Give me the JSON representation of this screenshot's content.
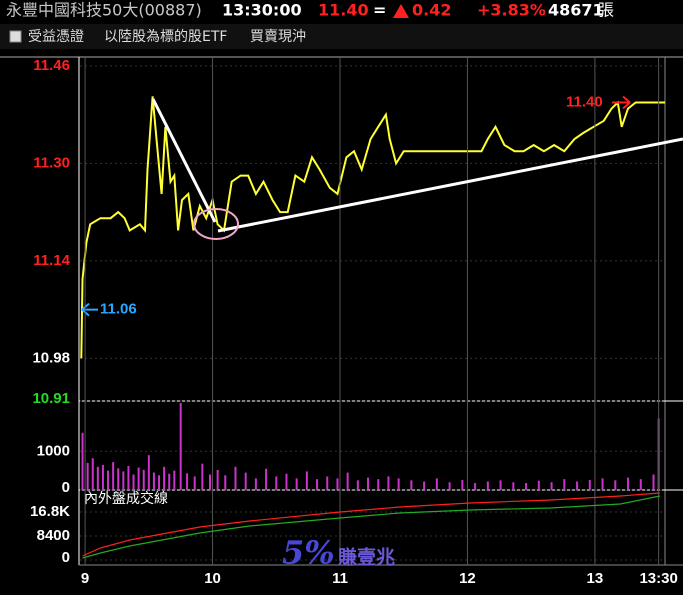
{
  "header": {
    "name": "永豐中國科技50大(00887)",
    "time": "13:30:00",
    "price": "11.40",
    "flag": "=",
    "change": "0.42",
    "change_pct": "+3.83%",
    "volume": "48671",
    "unit": "張"
  },
  "subheader": [
    "受益憑證",
    "以陸股為標的股ETF",
    "買賣現沖"
  ],
  "watermark": {
    "big": "5%",
    "small": "賺壹兆"
  },
  "chart_data": [
    {
      "type": "line",
      "xlim": [
        8.96,
        13.55
      ],
      "ylim": [
        10.91,
        11.473
      ],
      "yticks": [
        11.46,
        {
          "value": 11.3,
          "label": "11.30"
        },
        11.14,
        10.98,
        10.91
      ],
      "ytick_colors": [
        "#ff2020",
        "#ff2020",
        "#ff2020",
        "#ffffff",
        "#22dd22"
      ],
      "x": [
        8.97,
        8.98,
        9.01,
        9.04,
        9.12,
        9.2,
        9.26,
        9.31,
        9.35,
        9.43,
        9.47,
        9.49,
        9.53,
        9.56,
        9.6,
        9.63,
        9.67,
        9.7,
        9.73,
        9.76,
        9.81,
        9.85,
        9.9,
        9.95,
        10.0,
        10.04,
        10.09,
        10.15,
        10.22,
        10.28,
        10.34,
        10.4,
        10.47,
        10.53,
        10.59,
        10.65,
        10.72,
        10.78,
        10.84,
        10.92,
        10.98,
        11.05,
        11.11,
        11.17,
        11.24,
        11.3,
        11.36,
        11.39,
        11.44,
        11.5,
        11.58,
        11.66,
        11.74,
        11.82,
        11.89,
        11.97,
        12.05,
        12.11,
        12.16,
        12.22,
        12.29,
        12.37,
        12.44,
        12.52,
        12.6,
        12.68,
        12.76,
        12.84,
        12.91,
        12.99,
        13.07,
        13.13,
        13.18,
        13.21,
        13.26,
        13.32,
        13.39,
        13.43,
        13.55
      ],
      "series": [
        {
          "color": "#ffff33",
          "values": [
            10.98,
            11.11,
            11.17,
            11.2,
            11.21,
            11.21,
            11.22,
            11.21,
            11.19,
            11.2,
            11.19,
            11.29,
            11.41,
            11.34,
            11.25,
            11.36,
            11.27,
            11.28,
            11.19,
            11.24,
            11.25,
            11.19,
            11.23,
            11.21,
            11.24,
            11.2,
            11.19,
            11.27,
            11.28,
            11.28,
            11.25,
            11.27,
            11.24,
            11.22,
            11.22,
            11.28,
            11.27,
            11.31,
            11.29,
            11.26,
            11.25,
            11.31,
            11.32,
            11.29,
            11.34,
            11.36,
            11.38,
            11.34,
            11.3,
            11.32,
            11.32,
            11.32,
            11.32,
            11.32,
            11.32,
            11.32,
            11.32,
            11.32,
            11.34,
            11.36,
            11.33,
            11.32,
            11.32,
            11.33,
            11.32,
            11.33,
            11.32,
            11.34,
            11.35,
            11.36,
            11.37,
            11.39,
            11.4,
            11.36,
            11.39,
            11.4,
            11.4,
            11.4,
            11.4
          ]
        }
      ],
      "annotations": [
        {
          "text": "11.06",
          "value": 11.06,
          "color": "#2aa7ff",
          "arrow": "left"
        },
        {
          "text": "11.40",
          "value": 11.4,
          "color": "#ff2020",
          "arrow": "right"
        }
      ]
    },
    {
      "type": "bar",
      "xlim": [
        8.96,
        13.55
      ],
      "ylim": [
        0,
        2300
      ],
      "yticks": [
        1000,
        0
      ],
      "color": "#cc33cc",
      "x": [
        8.98,
        9.02,
        9.06,
        9.1,
        9.14,
        9.18,
        9.22,
        9.26,
        9.3,
        9.34,
        9.38,
        9.42,
        9.46,
        9.5,
        9.54,
        9.58,
        9.62,
        9.66,
        9.7,
        9.75,
        9.8,
        9.86,
        9.92,
        9.98,
        10.04,
        10.1,
        10.18,
        10.26,
        10.34,
        10.42,
        10.5,
        10.58,
        10.66,
        10.74,
        10.82,
        10.9,
        10.98,
        11.06,
        11.14,
        11.22,
        11.3,
        11.38,
        11.46,
        11.56,
        11.66,
        11.76,
        11.86,
        11.96,
        12.06,
        12.16,
        12.26,
        12.36,
        12.46,
        12.56,
        12.66,
        12.76,
        12.86,
        12.96,
        13.06,
        13.16,
        13.26,
        13.36,
        13.46,
        13.5
      ],
      "values": [
        1480,
        700,
        820,
        600,
        650,
        500,
        720,
        560,
        480,
        620,
        400,
        580,
        520,
        900,
        450,
        380,
        600,
        420,
        500,
        2250,
        430,
        350,
        680,
        400,
        520,
        380,
        600,
        450,
        300,
        550,
        350,
        420,
        300,
        480,
        280,
        350,
        300,
        450,
        250,
        320,
        280,
        350,
        300,
        250,
        220,
        300,
        200,
        260,
        180,
        220,
        250,
        200,
        180,
        240,
        200,
        280,
        220,
        260,
        300,
        250,
        320,
        280,
        400,
        1850
      ]
    },
    {
      "type": "line",
      "title": "內外盤成交線",
      "xlim": [
        8.96,
        13.55
      ],
      "ylim": [
        0,
        23800
      ],
      "yticks": [
        {
          "value": 16800,
          "label": "16.8K"
        },
        8400,
        0
      ],
      "xticks": [
        9,
        10,
        11,
        12,
        13,
        {
          "value": 13.5,
          "label": "13:30"
        }
      ],
      "x": [
        8.98,
        9.12,
        9.35,
        9.9,
        10.29,
        11.0,
        11.47,
        12.02,
        12.65,
        13.2,
        13.51
      ],
      "series": [
        {
          "color": "#ff2020",
          "values": [
            1400,
            4200,
            7000,
            11550,
            13650,
            16800,
            18550,
            19950,
            21000,
            22400,
            23450
          ]
        },
        {
          "color": "#22aa22",
          "values": [
            700,
            2450,
            4900,
            9450,
            11900,
            14700,
            16450,
            17500,
            18200,
            19600,
            22400
          ]
        }
      ]
    }
  ]
}
